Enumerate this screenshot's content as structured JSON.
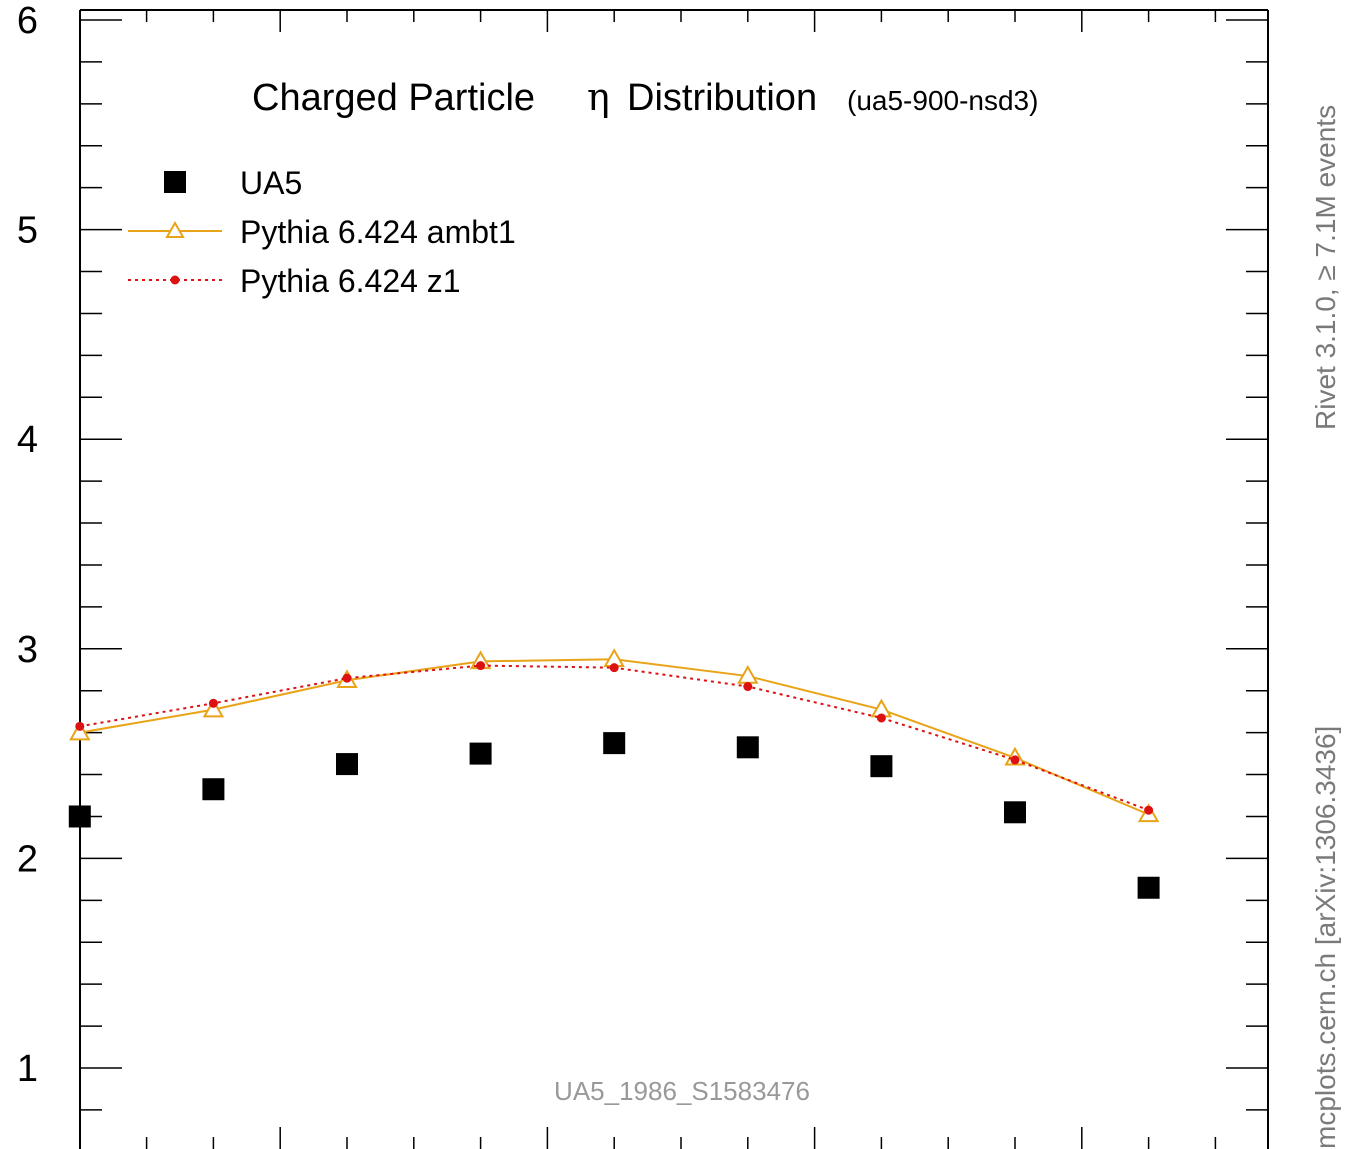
{
  "chart_data": {
    "type": "scatter",
    "title": "Charged Particle",
    "title_symbol": "η",
    "title_suffix": "Distribution",
    "subtitle": "(ua5-900-nsd3)",
    "watermark": "UA5_1986_S1583476",
    "ylim": [
      0.7,
      6.05
    ],
    "xlim": [
      0,
      4.8
    ],
    "yticks": [
      1,
      2,
      3,
      4,
      5,
      6
    ],
    "grid": false,
    "legend_position": "top-left",
    "x": [
      0.25,
      0.75,
      1.25,
      1.75,
      2.25,
      2.75,
      3.25,
      3.75,
      4.25
    ],
    "series": [
      {
        "name": "UA5",
        "style": "marker",
        "color": "#000000",
        "values": [
          2.2,
          2.33,
          2.45,
          2.5,
          2.55,
          2.53,
          2.44,
          2.22,
          1.86
        ]
      },
      {
        "name": "Pythia 6.424 ambt1",
        "style": "solid-triangle",
        "color": "#e8a317",
        "values": [
          2.6,
          2.71,
          2.85,
          2.94,
          2.95,
          2.87,
          2.71,
          2.48,
          2.21
        ]
      },
      {
        "name": "Pythia 6.424 z1",
        "style": "dotted-dot",
        "color": "#dd1111",
        "values": [
          2.63,
          2.74,
          2.86,
          2.92,
          2.91,
          2.82,
          2.67,
          2.47,
          2.23
        ]
      }
    ]
  },
  "side_labels": {
    "top": "Rivet 3.1.0, ≥ 7.1M events",
    "bottom": "mcplots.cern.ch [arXiv:1306.3436]"
  }
}
